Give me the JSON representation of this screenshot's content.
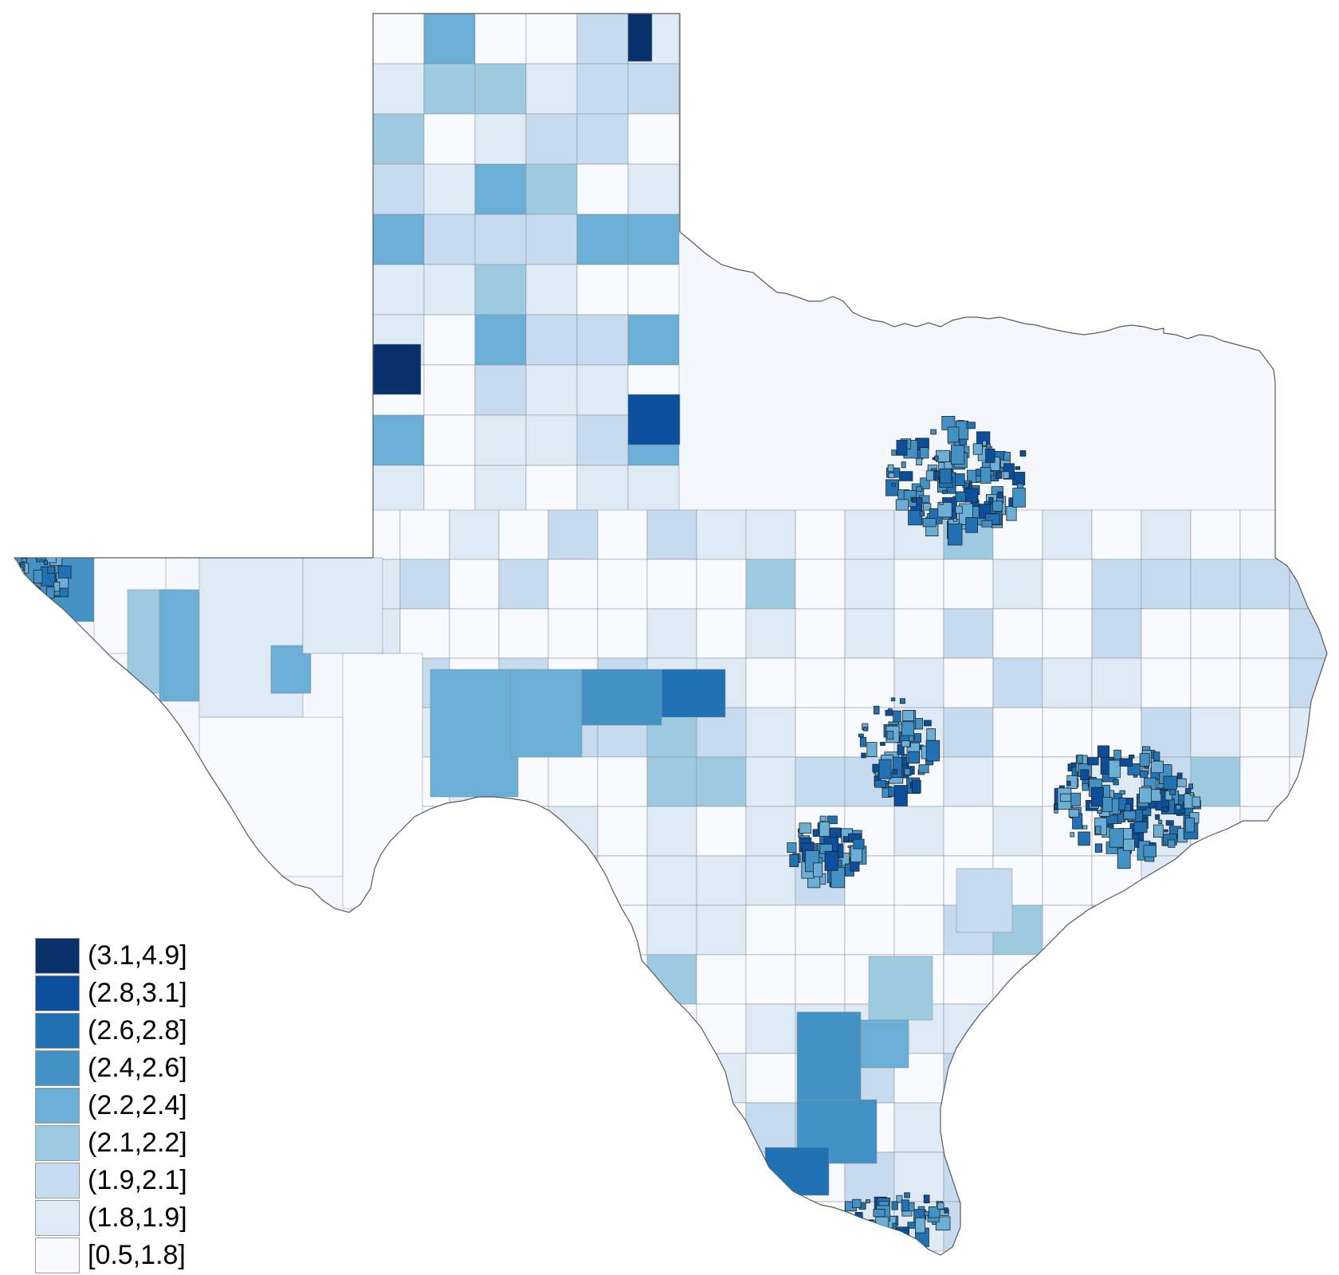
{
  "legend": {
    "items": [
      {
        "label": "(3.1,4.9]",
        "color": "#08306b"
      },
      {
        "label": "(2.8,3.1]",
        "color": "#0b4f9c"
      },
      {
        "label": "(2.6,2.8]",
        "color": "#2171b5"
      },
      {
        "label": "(2.4,2.6]",
        "color": "#4292c6"
      },
      {
        "label": "(2.2,2.4]",
        "color": "#6baed6"
      },
      {
        "label": "(2.1,2.2]",
        "color": "#9ecae1"
      },
      {
        "label": "(1.9,2.1]",
        "color": "#c6dbef"
      },
      {
        "label": "(1.8,1.9]",
        "color": "#deebf7"
      },
      {
        "label": "[0.5,1.8]",
        "color": "#f7fbff"
      }
    ]
  },
  "map": {
    "region": "Texas",
    "outline_color": "#5a5a5a",
    "boundary_color": "#8a8a8a",
    "metro_boundary_color": "#222222"
  }
}
